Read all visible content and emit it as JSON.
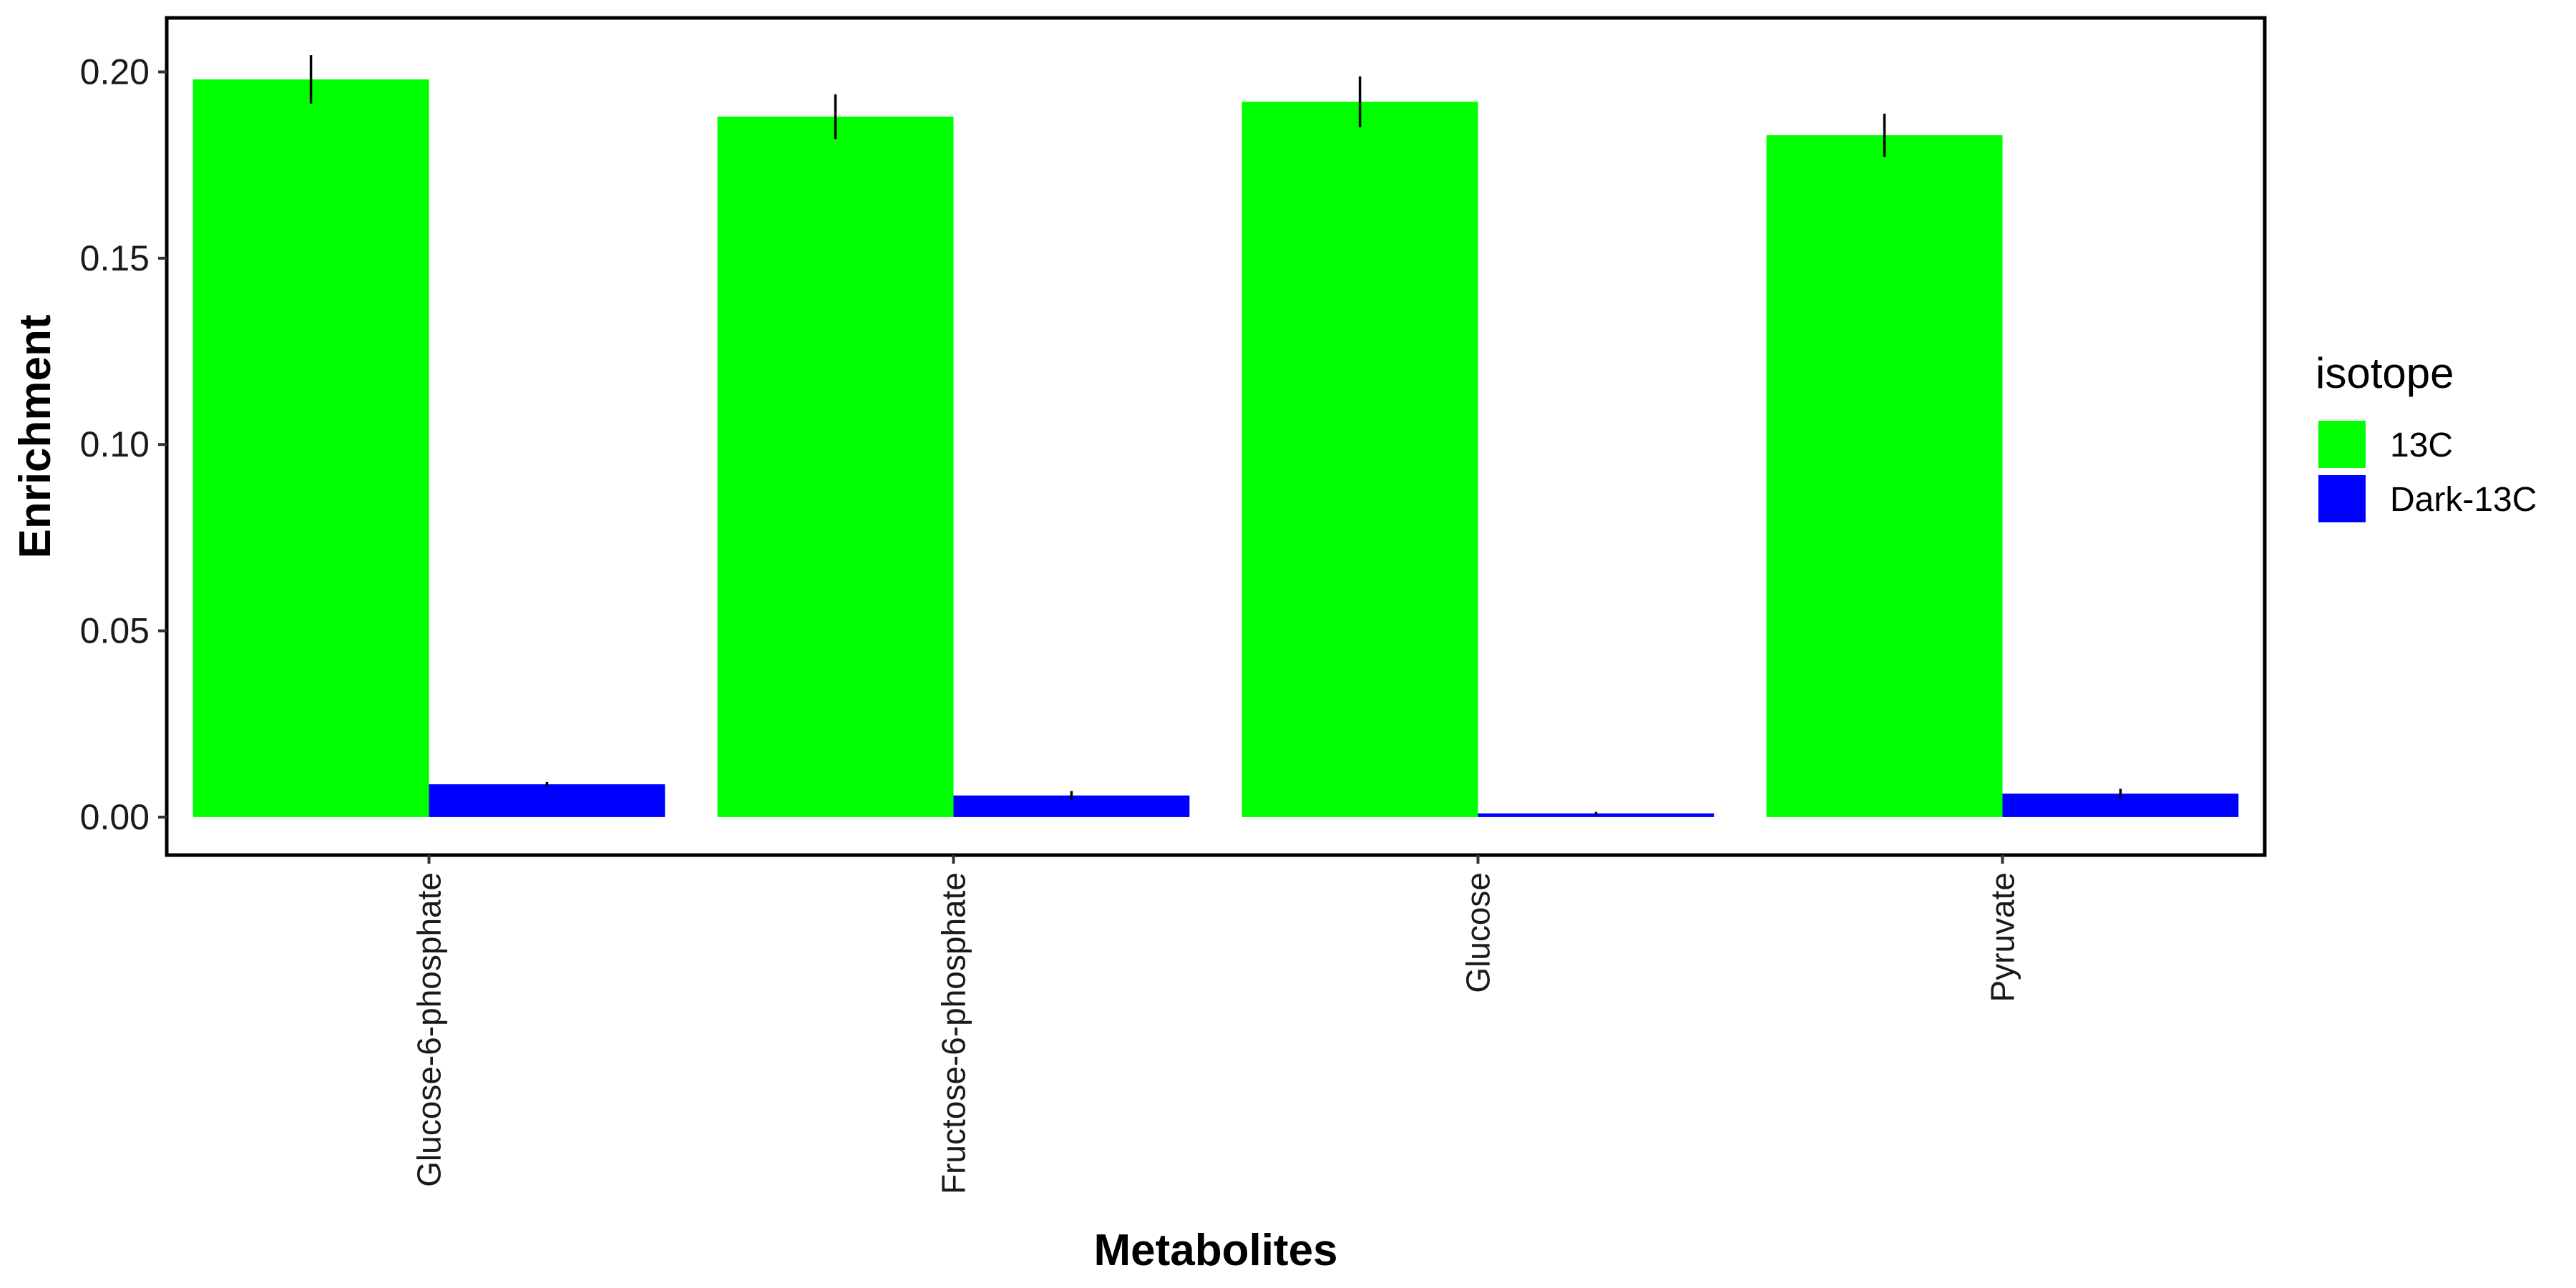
{
  "chart_data": {
    "type": "bar",
    "title": "",
    "xlabel": "Metabolites",
    "ylabel": "Enrichment",
    "categories": [
      "Glucose-6-phosphate",
      "Fructose-6-phosphate",
      "Glucose",
      "Pyruvate"
    ],
    "series": [
      {
        "name": "13C",
        "color": "#00ff00",
        "values": [
          0.198,
          0.188,
          0.192,
          0.183
        ],
        "errors": [
          0.0065,
          0.006,
          0.0068,
          0.0058
        ]
      },
      {
        "name": "Dark-13C",
        "color": "#0000ff",
        "values": [
          0.0088,
          0.0058,
          0.001,
          0.0063
        ],
        "errors": [
          0.0006,
          0.0012,
          0.0004,
          0.0013
        ]
      }
    ],
    "ylim": [
      -0.0102,
      0.2145
    ],
    "yticks": [
      0.0,
      0.05,
      0.1,
      0.15,
      0.2
    ],
    "ytick_labels": [
      "0.00",
      "0.05",
      "0.10",
      "0.15",
      "0.20"
    ],
    "grid": false,
    "legend": {
      "title": "isotope",
      "position": "right"
    }
  }
}
